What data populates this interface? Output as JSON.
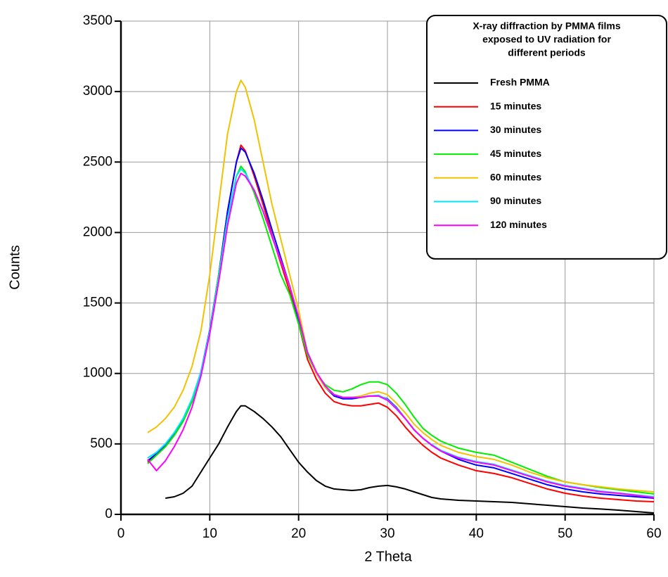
{
  "chart_data": {
    "type": "line",
    "title_lines": [
      "X-ray diffraction by PMMA films",
      "exposed to UV radiation for",
      "different periods"
    ],
    "x_label": "2 Theta",
    "y_label": "Counts",
    "xlim": [
      0,
      60
    ],
    "xticks": [
      0,
      10,
      20,
      30,
      40,
      50,
      60
    ],
    "ylim": [
      0,
      3500
    ],
    "yticks": [
      0,
      500,
      1000,
      1500,
      2000,
      2500,
      3000,
      3500
    ],
    "grid": true,
    "legend": "upper right",
    "x": [
      3,
      4,
      5,
      6,
      7,
      8,
      9,
      10,
      11,
      12,
      13,
      13.5,
      14,
      15,
      16,
      17,
      18,
      19,
      20,
      21,
      22,
      23,
      24,
      25,
      26,
      27,
      28,
      29,
      30,
      31,
      32,
      33,
      34,
      35,
      36,
      38,
      40,
      42,
      44,
      46,
      48,
      50,
      52,
      54,
      56,
      58,
      60
    ],
    "series": [
      {
        "name": "Fresh PMMA",
        "color": "#000000",
        "values": [
          null,
          null,
          115,
          125,
          150,
          200,
          300,
          400,
          500,
          620,
          730,
          770,
          770,
          730,
          680,
          620,
          550,
          460,
          370,
          300,
          240,
          200,
          180,
          175,
          170,
          175,
          190,
          200,
          205,
          195,
          180,
          160,
          140,
          120,
          110,
          100,
          95,
          90,
          85,
          75,
          65,
          55,
          45,
          38,
          30,
          20,
          10
        ]
      },
      {
        "name": "15 minutes",
        "color": "#ff0000",
        "values": [
          370,
          420,
          480,
          560,
          660,
          800,
          1000,
          1300,
          1700,
          2150,
          2500,
          2620,
          2580,
          2400,
          2200,
          1980,
          1780,
          1580,
          1350,
          1100,
          960,
          860,
          800,
          780,
          770,
          770,
          780,
          790,
          760,
          700,
          620,
          550,
          490,
          440,
          400,
          350,
          310,
          290,
          260,
          220,
          180,
          150,
          130,
          115,
          105,
          95,
          90
        ]
      },
      {
        "name": "30 minutes",
        "color": "#0000ff",
        "values": [
          380,
          430,
          490,
          570,
          670,
          810,
          1010,
          1310,
          1700,
          2150,
          2500,
          2600,
          2570,
          2420,
          2230,
          2020,
          1820,
          1620,
          1380,
          1150,
          1000,
          900,
          840,
          820,
          820,
          830,
          840,
          840,
          820,
          760,
          680,
          600,
          540,
          490,
          450,
          390,
          350,
          330,
          290,
          250,
          210,
          180,
          160,
          145,
          135,
          125,
          115
        ]
      },
      {
        "name": "45 minutes",
        "color": "#00ee00",
        "values": [
          360,
          420,
          480,
          560,
          660,
          800,
          1000,
          1300,
          1700,
          2100,
          2400,
          2470,
          2430,
          2280,
          2100,
          1900,
          1700,
          1560,
          1350,
          1130,
          1000,
          920,
          880,
          870,
          890,
          920,
          940,
          940,
          920,
          860,
          780,
          690,
          610,
          560,
          520,
          470,
          440,
          420,
          370,
          320,
          270,
          230,
          210,
          190,
          175,
          160,
          145
        ]
      },
      {
        "name": "60 minutes",
        "color": "#f2c200",
        "values": [
          580,
          620,
          680,
          760,
          880,
          1050,
          1300,
          1700,
          2200,
          2700,
          3000,
          3080,
          3030,
          2800,
          2500,
          2200,
          1950,
          1700,
          1450,
          1150,
          1000,
          900,
          850,
          830,
          830,
          840,
          860,
          870,
          850,
          790,
          720,
          640,
          580,
          530,
          490,
          440,
          410,
          390,
          350,
          300,
          260,
          230,
          210,
          195,
          180,
          170,
          160
        ]
      },
      {
        "name": "90 minutes",
        "color": "#00e5ff",
        "values": [
          400,
          440,
          500,
          580,
          680,
          820,
          1010,
          1300,
          1680,
          2100,
          2400,
          2450,
          2420,
          2300,
          2150,
          1970,
          1800,
          1620,
          1400,
          1150,
          1010,
          910,
          850,
          830,
          830,
          830,
          840,
          845,
          815,
          755,
          680,
          600,
          540,
          495,
          455,
          405,
          375,
          355,
          315,
          275,
          235,
          205,
          185,
          165,
          152,
          138,
          125
        ]
      },
      {
        "name": "120 minutes",
        "color": "#ff00ff",
        "values": [
          390,
          310,
          380,
          480,
          600,
          760,
          980,
          1280,
          1650,
          2050,
          2350,
          2420,
          2400,
          2300,
          2150,
          1970,
          1800,
          1620,
          1400,
          1150,
          1010,
          910,
          850,
          830,
          830,
          830,
          840,
          840,
          810,
          750,
          680,
          600,
          540,
          490,
          450,
          400,
          370,
          350,
          310,
          270,
          230,
          200,
          180,
          160,
          150,
          135,
          120
        ]
      }
    ]
  }
}
